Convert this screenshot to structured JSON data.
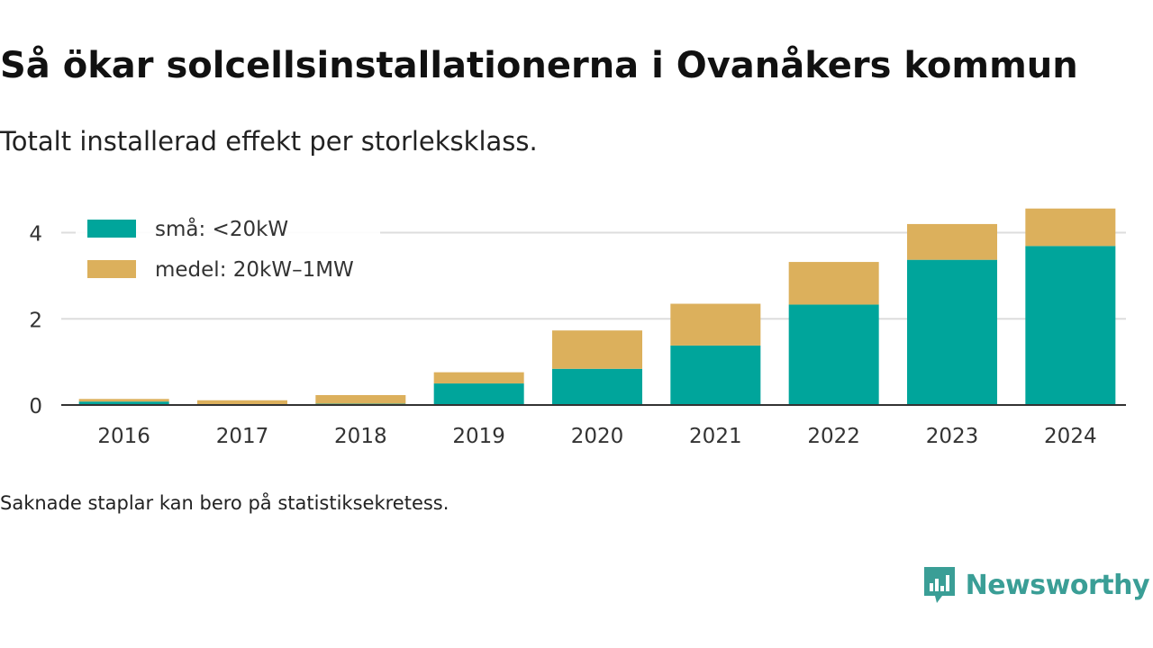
{
  "header": {
    "title": "Så ökar solcellsinstallationerna i Ovanåkers kommun",
    "subtitle": "Totalt installerad effekt per storleksklass."
  },
  "footnote": "Saknade staplar kan bero på statistiksekretess.",
  "brand": {
    "name": "Newsworthy",
    "icon": "newsworthy-chart-bubble-icon",
    "color": "#3a9e96"
  },
  "chart_data": {
    "type": "bar",
    "stacked": true,
    "categories": [
      "2016",
      "2017",
      "2018",
      "2019",
      "2020",
      "2021",
      "2022",
      "2023",
      "2024"
    ],
    "series": [
      {
        "name": "små: <20kW",
        "color": "#00a59b",
        "values": [
          0.08,
          0.02,
          0.03,
          0.5,
          0.84,
          1.38,
          2.33,
          3.37,
          3.69
        ]
      },
      {
        "name": "medel: 20kW–1MW",
        "color": "#dcb05c",
        "values": [
          0.06,
          0.09,
          0.2,
          0.26,
          0.89,
          0.97,
          0.99,
          0.83,
          0.87
        ]
      }
    ],
    "yticks": [
      0,
      2,
      4
    ],
    "ylim": [
      0,
      4.7
    ],
    "grid": true,
    "legend_position": "top-left",
    "xlabel": "",
    "ylabel": ""
  }
}
